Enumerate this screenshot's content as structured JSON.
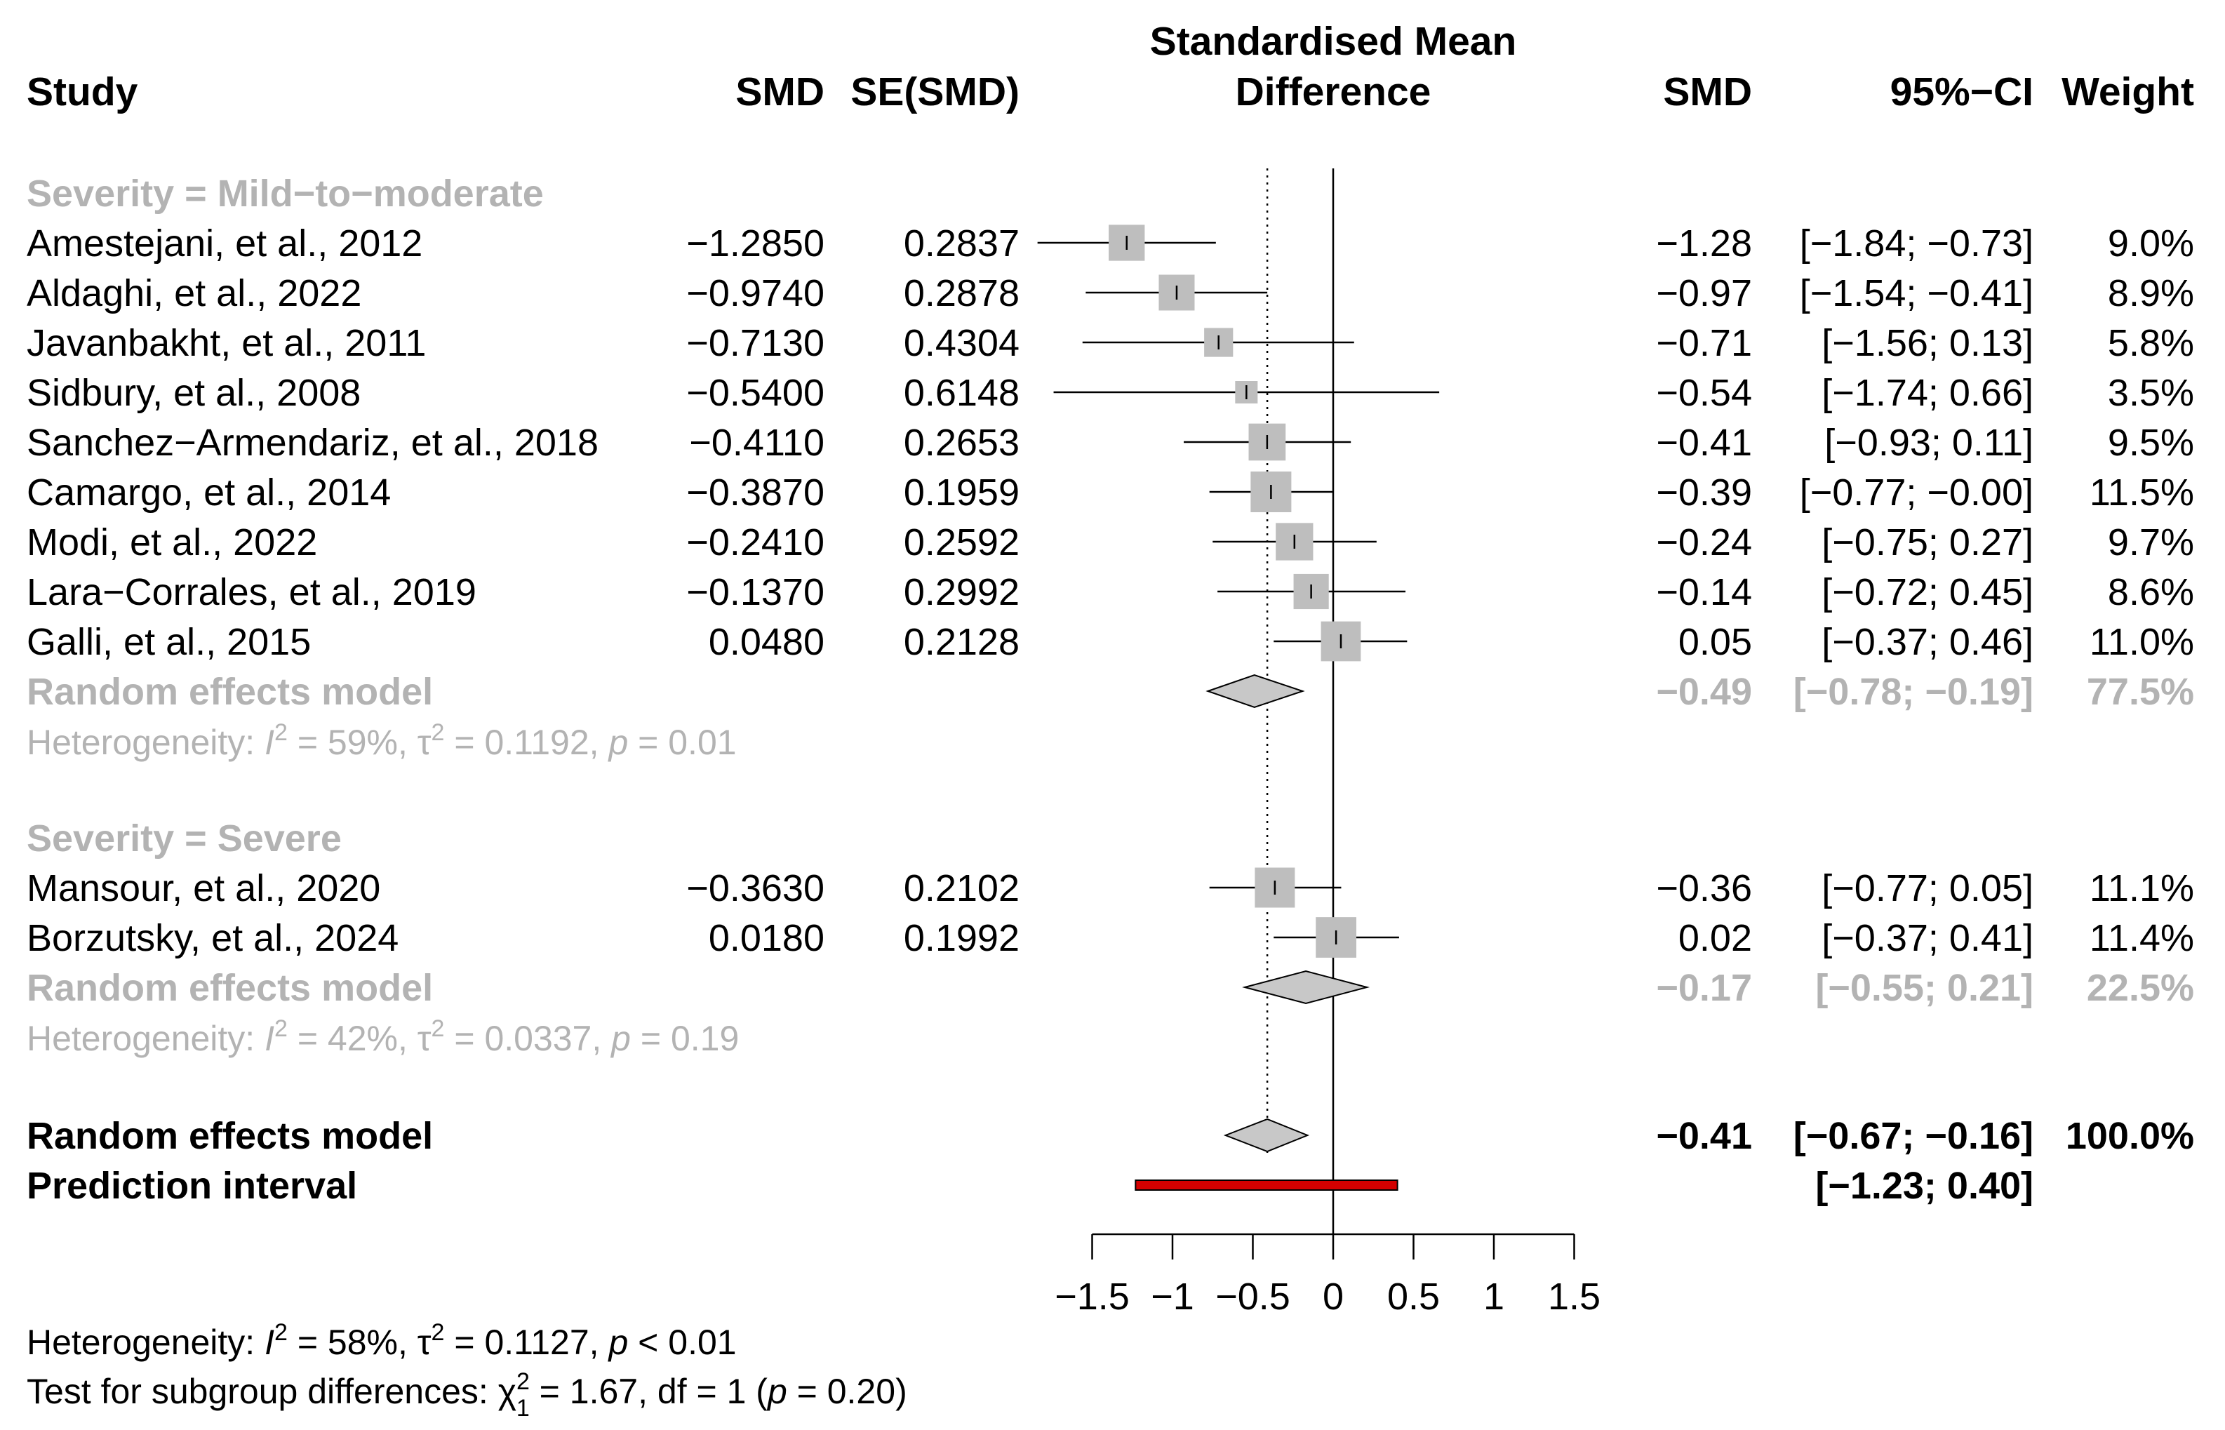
{
  "chart_data": {
    "type": "forest",
    "title": [
      "Standardised Mean",
      "Difference"
    ],
    "headers": {
      "study": "Study",
      "smd": "SMD",
      "se": "SE(SMD)",
      "smd_right": "SMD",
      "ci": "95%−CI",
      "weight": "Weight"
    },
    "x_ticks": [
      -1.5,
      -1,
      -0.5,
      0,
      0.5,
      1,
      1.5
    ],
    "x_tick_labels": [
      "−1.5",
      "−1",
      "−0.5",
      "0",
      "0.5",
      "1",
      "1.5"
    ],
    "xlim": [
      -1.5,
      1.5
    ],
    "reference_line": 0,
    "overall_line": -0.41,
    "colors": {
      "subgroup": "#b3b3b3",
      "box": "#bebebe",
      "diamond": "#c8c8c8",
      "prediction": "#d40000",
      "text": "#000000"
    },
    "subgroups": [
      {
        "label": "Severity = Mild−to−moderate",
        "studies": [
          {
            "name": "Amestejani, et al., 2012",
            "smd_text": "−1.2850",
            "se_text": "0.2837",
            "smd": -1.285,
            "lower": -1.84,
            "upper": -0.73,
            "weight": 9.0,
            "smd_disp": "−1.28",
            "ci_text": "[−1.84; −0.73]",
            "weight_text": "9.0%"
          },
          {
            "name": "Aldaghi, et al., 2022",
            "smd_text": "−0.9740",
            "se_text": "0.2878",
            "smd": -0.974,
            "lower": -1.54,
            "upper": -0.41,
            "weight": 8.9,
            "smd_disp": "−0.97",
            "ci_text": "[−1.54; −0.41]",
            "weight_text": "8.9%"
          },
          {
            "name": "Javanbakht, et al., 2011",
            "smd_text": "−0.7130",
            "se_text": "0.4304",
            "smd": -0.713,
            "lower": -1.56,
            "upper": 0.13,
            "weight": 5.8,
            "smd_disp": "−0.71",
            "ci_text": "[−1.56;  0.13]",
            "weight_text": "5.8%"
          },
          {
            "name": "Sidbury, et al., 2008",
            "smd_text": "−0.5400",
            "se_text": "0.6148",
            "smd": -0.54,
            "lower": -1.74,
            "upper": 0.66,
            "weight": 3.5,
            "smd_disp": "−0.54",
            "ci_text": "[−1.74;  0.66]",
            "weight_text": "3.5%"
          },
          {
            "name": "Sanchez−Armendariz, et al., 2018",
            "smd_text": "−0.4110",
            "se_text": "0.2653",
            "smd": -0.411,
            "lower": -0.93,
            "upper": 0.11,
            "weight": 9.5,
            "smd_disp": "−0.41",
            "ci_text": "[−0.93;  0.11]",
            "weight_text": "9.5%"
          },
          {
            "name": "Camargo, et al., 2014",
            "smd_text": "−0.3870",
            "se_text": "0.1959",
            "smd": -0.387,
            "lower": -0.77,
            "upper": 0.0,
            "weight": 11.5,
            "smd_disp": "−0.39",
            "ci_text": "[−0.77; −0.00]",
            "weight_text": "11.5%"
          },
          {
            "name": "Modi, et al., 2022",
            "smd_text": "−0.2410",
            "se_text": "0.2592",
            "smd": -0.241,
            "lower": -0.75,
            "upper": 0.27,
            "weight": 9.7,
            "smd_disp": "−0.24",
            "ci_text": "[−0.75;  0.27]",
            "weight_text": "9.7%"
          },
          {
            "name": "Lara−Corrales, et al., 2019",
            "smd_text": "−0.1370",
            "se_text": "0.2992",
            "smd": -0.137,
            "lower": -0.72,
            "upper": 0.45,
            "weight": 8.6,
            "smd_disp": "−0.14",
            "ci_text": "[−0.72;  0.45]",
            "weight_text": "8.6%"
          },
          {
            "name": "Galli, et al., 2015",
            "smd_text": "0.0480",
            "se_text": "0.2128",
            "smd": 0.048,
            "lower": -0.37,
            "upper": 0.46,
            "weight": 11.0,
            "smd_disp": "0.05",
            "ci_text": "[−0.37;  0.46]",
            "weight_text": "11.0%"
          }
        ],
        "model": {
          "label": "Random effects model",
          "est": -0.49,
          "lower": -0.78,
          "upper": -0.19,
          "smd_disp": "−0.49",
          "ci_text": "[−0.78; −0.19]",
          "weight_text": "77.5%"
        },
        "heterogeneity": {
          "prefix": "Heterogeneity: ",
          "i2": "59%",
          "tau2": "0.1192",
          "p": "0.01"
        }
      },
      {
        "label": "Severity = Severe",
        "studies": [
          {
            "name": "Mansour, et al., 2020",
            "smd_text": "−0.3630",
            "se_text": "0.2102",
            "smd": -0.363,
            "lower": -0.77,
            "upper": 0.05,
            "weight": 11.1,
            "smd_disp": "−0.36",
            "ci_text": "[−0.77;  0.05]",
            "weight_text": "11.1%"
          },
          {
            "name": "Borzutsky, et al., 2024",
            "smd_text": "0.0180",
            "se_text": "0.1992",
            "smd": 0.018,
            "lower": -0.37,
            "upper": 0.41,
            "weight": 11.4,
            "smd_disp": "0.02",
            "ci_text": "[−0.37;  0.41]",
            "weight_text": "11.4%"
          }
        ],
        "model": {
          "label": "Random effects model",
          "est": -0.17,
          "lower": -0.55,
          "upper": 0.21,
          "smd_disp": "−0.17",
          "ci_text": "[−0.55;  0.21]",
          "weight_text": "22.5%"
        },
        "heterogeneity": {
          "prefix": "Heterogeneity: ",
          "i2": "42%",
          "tau2": "0.0337",
          "p": "0.19"
        }
      }
    ],
    "overall": {
      "label": "Random effects model",
      "est": -0.41,
      "lower": -0.67,
      "upper": -0.16,
      "smd_disp": "−0.41",
      "ci_text": "[−0.67; −0.16]",
      "weight_text": "100.0%"
    },
    "prediction": {
      "label": "Prediction interval",
      "lower": -1.23,
      "upper": 0.4,
      "ci_text": "[−1.23;  0.40]"
    },
    "footer": {
      "heterogeneity": {
        "prefix": "Heterogeneity: ",
        "i2": "58%",
        "tau2": "0.1127",
        "p_rel": "<",
        "p": "0.01"
      },
      "subgroup_test": {
        "prefix": "Test for subgroup differences: ",
        "chi2": "1.67",
        "df_text": "df = 1",
        "p": "0.20"
      }
    }
  }
}
